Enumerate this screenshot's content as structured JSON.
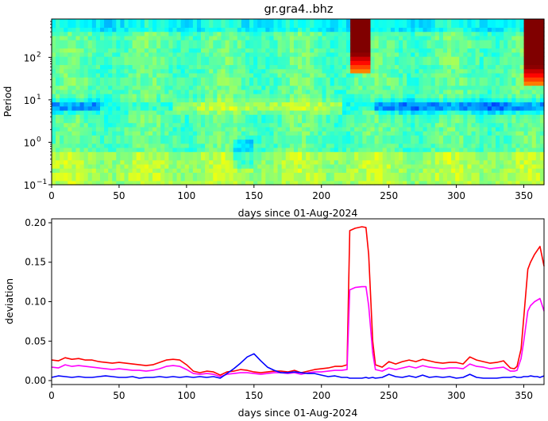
{
  "title": "gr.gra4..bhz",
  "chart_data": [
    {
      "type": "heatmap",
      "title": "gr.gra4..bhz",
      "xlabel": "days since 01-Aug-2024",
      "ylabel": "Period",
      "xlim": [
        0,
        365
      ],
      "ylim": [
        0.1,
        800
      ],
      "yscale": "log",
      "xticks": [
        "0",
        "50",
        "100",
        "150",
        "200",
        "250",
        "300",
        "350"
      ],
      "yticks": [
        {
          "base": "10",
          "exp": "−1",
          "value": 0.1
        },
        {
          "base": "10",
          "exp": "0",
          "value": 1
        },
        {
          "base": "10",
          "exp": "1",
          "value": 10
        },
        {
          "base": "10",
          "exp": "2",
          "value": 100
        }
      ],
      "colormap": "jet",
      "features": [
        {
          "name": "high anomaly",
          "x": [
            222,
            235
          ],
          "period": [
            40,
            800
          ],
          "level": "max"
        },
        {
          "name": "high anomaly",
          "x": [
            350,
            365
          ],
          "period": [
            20,
            800
          ],
          "level": "max"
        },
        {
          "name": "low band",
          "x": [
            0,
            365
          ],
          "period": [
            4,
            12
          ],
          "level": "low"
        }
      ]
    },
    {
      "type": "line",
      "xlabel": "days since 01-Aug-2024",
      "ylabel": "deviation",
      "xlim": [
        0,
        365
      ],
      "ylim": [
        -0.005,
        0.205
      ],
      "xticks": [
        "0",
        "50",
        "100",
        "150",
        "200",
        "250",
        "300",
        "350"
      ],
      "yticks": [
        "0.00",
        "0.05",
        "0.10",
        "0.15",
        "0.20"
      ],
      "series": [
        {
          "color": "#ff0000",
          "x": [
            0,
            5,
            10,
            15,
            20,
            25,
            30,
            35,
            40,
            45,
            50,
            55,
            60,
            65,
            70,
            75,
            80,
            85,
            90,
            95,
            100,
            105,
            110,
            115,
            120,
            125,
            130,
            135,
            140,
            145,
            150,
            155,
            160,
            165,
            170,
            175,
            180,
            185,
            190,
            195,
            200,
            205,
            210,
            215,
            219,
            221,
            225,
            230,
            233,
            235,
            238,
            240,
            245,
            250,
            255,
            260,
            265,
            270,
            275,
            280,
            285,
            290,
            295,
            300,
            305,
            310,
            315,
            320,
            325,
            330,
            335,
            340,
            343,
            345,
            348,
            350,
            353,
            355,
            358,
            360,
            362,
            365
          ],
          "y": [
            0.026,
            0.025,
            0.029,
            0.027,
            0.028,
            0.026,
            0.026,
            0.024,
            0.023,
            0.022,
            0.023,
            0.022,
            0.021,
            0.02,
            0.019,
            0.02,
            0.023,
            0.026,
            0.027,
            0.026,
            0.02,
            0.012,
            0.01,
            0.012,
            0.011,
            0.007,
            0.011,
            0.012,
            0.014,
            0.013,
            0.011,
            0.01,
            0.011,
            0.012,
            0.012,
            0.011,
            0.013,
            0.01,
            0.012,
            0.014,
            0.015,
            0.016,
            0.018,
            0.018,
            0.02,
            0.19,
            0.193,
            0.195,
            0.194,
            0.16,
            0.05,
            0.02,
            0.017,
            0.024,
            0.021,
            0.024,
            0.026,
            0.024,
            0.027,
            0.025,
            0.023,
            0.022,
            0.023,
            0.023,
            0.021,
            0.03,
            0.026,
            0.024,
            0.022,
            0.023,
            0.025,
            0.016,
            0.015,
            0.018,
            0.04,
            0.08,
            0.141,
            0.15,
            0.16,
            0.165,
            0.17,
            0.145
          ]
        },
        {
          "color": "#ff00ff",
          "x": [
            0,
            5,
            10,
            15,
            20,
            25,
            30,
            35,
            40,
            45,
            50,
            55,
            60,
            65,
            70,
            75,
            80,
            85,
            90,
            95,
            100,
            105,
            110,
            115,
            120,
            125,
            130,
            135,
            140,
            145,
            150,
            155,
            160,
            165,
            170,
            175,
            180,
            185,
            190,
            195,
            200,
            205,
            210,
            215,
            219,
            221,
            225,
            230,
            233,
            235,
            238,
            240,
            245,
            250,
            255,
            260,
            265,
            270,
            275,
            280,
            285,
            290,
            295,
            300,
            305,
            310,
            315,
            320,
            325,
            330,
            335,
            340,
            343,
            345,
            348,
            350,
            353,
            355,
            358,
            360,
            362,
            365
          ],
          "y": [
            0.017,
            0.016,
            0.02,
            0.018,
            0.019,
            0.018,
            0.017,
            0.016,
            0.015,
            0.014,
            0.015,
            0.014,
            0.013,
            0.013,
            0.012,
            0.013,
            0.015,
            0.018,
            0.019,
            0.018,
            0.014,
            0.009,
            0.008,
            0.009,
            0.008,
            0.005,
            0.008,
            0.009,
            0.01,
            0.01,
            0.009,
            0.008,
            0.009,
            0.01,
            0.01,
            0.009,
            0.01,
            0.008,
            0.01,
            0.011,
            0.011,
            0.012,
            0.013,
            0.013,
            0.014,
            0.115,
            0.118,
            0.119,
            0.119,
            0.095,
            0.035,
            0.014,
            0.012,
            0.016,
            0.014,
            0.016,
            0.018,
            0.016,
            0.019,
            0.017,
            0.016,
            0.015,
            0.016,
            0.016,
            0.015,
            0.021,
            0.018,
            0.017,
            0.015,
            0.016,
            0.017,
            0.012,
            0.012,
            0.013,
            0.028,
            0.05,
            0.088,
            0.095,
            0.1,
            0.102,
            0.104,
            0.088
          ]
        },
        {
          "color": "#0000ff",
          "x": [
            0,
            5,
            10,
            15,
            20,
            25,
            30,
            35,
            40,
            45,
            50,
            55,
            60,
            65,
            70,
            75,
            80,
            85,
            90,
            95,
            100,
            105,
            110,
            115,
            120,
            125,
            130,
            135,
            140,
            145,
            150,
            155,
            160,
            165,
            170,
            175,
            180,
            185,
            190,
            195,
            200,
            205,
            210,
            215,
            219,
            221,
            225,
            230,
            233,
            235,
            238,
            240,
            245,
            250,
            255,
            260,
            265,
            270,
            275,
            280,
            285,
            290,
            295,
            300,
            305,
            310,
            315,
            320,
            325,
            330,
            335,
            340,
            343,
            345,
            348,
            350,
            353,
            355,
            358,
            360,
            362,
            365
          ],
          "y": [
            0.004,
            0.006,
            0.005,
            0.004,
            0.005,
            0.004,
            0.004,
            0.005,
            0.006,
            0.005,
            0.004,
            0.004,
            0.005,
            0.003,
            0.004,
            0.004,
            0.005,
            0.004,
            0.005,
            0.004,
            0.005,
            0.004,
            0.005,
            0.004,
            0.005,
            0.003,
            0.009,
            0.015,
            0.022,
            0.03,
            0.034,
            0.025,
            0.017,
            0.013,
            0.01,
            0.01,
            0.011,
            0.01,
            0.009,
            0.009,
            0.007,
            0.005,
            0.006,
            0.004,
            0.004,
            0.003,
            0.003,
            0.003,
            0.004,
            0.003,
            0.004,
            0.003,
            0.004,
            0.008,
            0.005,
            0.004,
            0.006,
            0.004,
            0.007,
            0.004,
            0.005,
            0.004,
            0.005,
            0.003,
            0.004,
            0.008,
            0.004,
            0.003,
            0.003,
            0.003,
            0.004,
            0.004,
            0.005,
            0.004,
            0.004,
            0.005,
            0.005,
            0.006,
            0.005,
            0.005,
            0.004,
            0.006
          ]
        }
      ]
    }
  ]
}
